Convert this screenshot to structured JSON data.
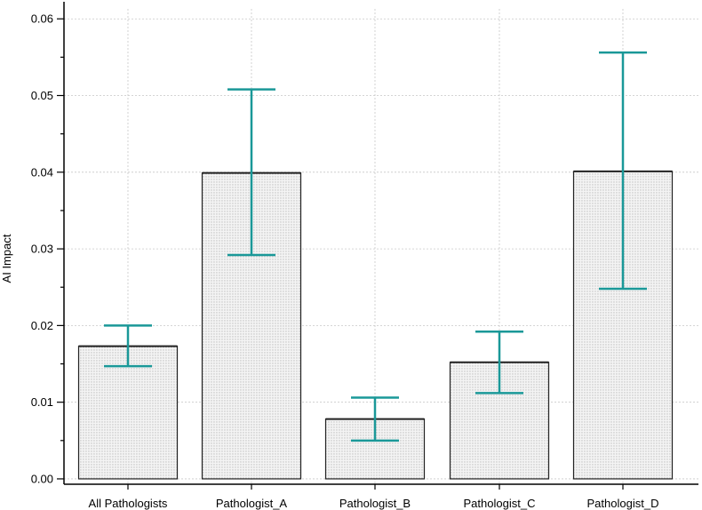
{
  "chart_data": {
    "type": "bar",
    "title": "",
    "xlabel": "",
    "ylabel": "AI Impact",
    "categories": [
      "All Pathologists",
      "Pathologist_A",
      "Pathologist_B",
      "Pathologist_C",
      "Pathologist_D"
    ],
    "values": [
      0.0173,
      0.0399,
      0.0078,
      0.0152,
      0.0401
    ],
    "error_low": [
      0.0147,
      0.0292,
      0.005,
      0.0112,
      0.0248
    ],
    "error_high": [
      0.02,
      0.0508,
      0.0106,
      0.0192,
      0.0556
    ],
    "ylim": [
      -0.0007,
      0.0613
    ],
    "yticks": [
      "0.00",
      "0.01",
      "0.02",
      "0.03",
      "0.04",
      "0.05",
      "0.06"
    ],
    "ytick_values": [
      0,
      0.01,
      0.02,
      0.03,
      0.04,
      0.05,
      0.06
    ],
    "grid": true,
    "bar_fill": "#f2f2f2",
    "bar_stipple": "#8a8a8a",
    "bar_edge": "#222222",
    "error_color": "#1a9898",
    "grid_color": "#c8c8c8"
  }
}
